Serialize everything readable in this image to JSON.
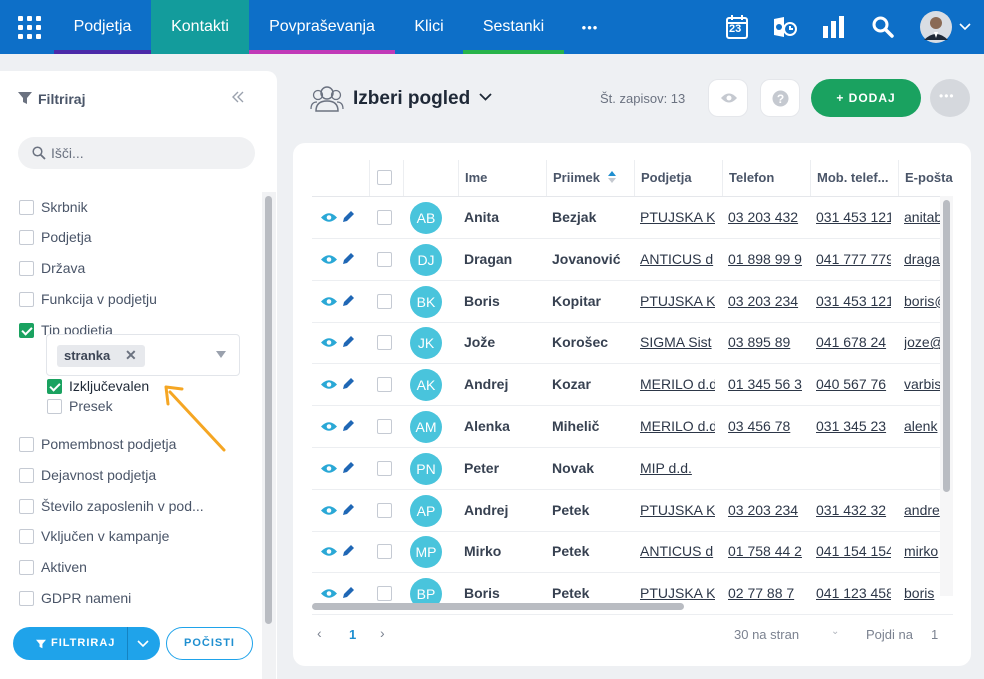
{
  "nav": {
    "items": [
      {
        "label": "Podjetja"
      },
      {
        "label": "Kontakti"
      },
      {
        "label": "Povpraševanja"
      },
      {
        "label": "Klici"
      },
      {
        "label": "Sestanki"
      }
    ],
    "more": "•••",
    "calendar_day": "23",
    "colors": {
      "bar": "#0d6fc8",
      "active": "#139c9c"
    }
  },
  "sidebar": {
    "title": "Filtriraj",
    "search_placeholder": "Išči...",
    "filters": [
      {
        "label": "Skrbnik",
        "checked": false
      },
      {
        "label": "Podjetja",
        "checked": false
      },
      {
        "label": "Država",
        "checked": false
      },
      {
        "label": "Funkcija v podjetju",
        "checked": false
      },
      {
        "label": "Tip podjetja",
        "checked": true
      },
      {
        "label": "Pomembnost podjetja",
        "checked": false
      },
      {
        "label": "Dejavnost podjetja",
        "checked": false
      },
      {
        "label": "Število zaposlenih v pod...",
        "checked": false
      },
      {
        "label": "Vključen v kampanje",
        "checked": false
      },
      {
        "label": "Aktiven",
        "checked": false
      },
      {
        "label": "GDPR nameni",
        "checked": false
      }
    ],
    "tag": "stranka",
    "sub_options": [
      {
        "label": "Izključevalen",
        "checked": true
      },
      {
        "label": "Presek",
        "checked": false
      }
    ],
    "filter_button": "FILTRIRAJ",
    "reset_button": "POČISTI"
  },
  "header": {
    "view_title": "Izberi pogled",
    "record_count": "Št. zapisov: 13",
    "add_button": "+ DODAJ"
  },
  "table": {
    "columns": [
      "Ime",
      "Priimek",
      "Podjetja",
      "Telefon",
      "Mob. telef...",
      "E-pošta"
    ],
    "rows": [
      {
        "initials": "AB",
        "first": "Anita",
        "last": "Bezjak",
        "company": "PTUJSKA K",
        "phone": "03 203 432",
        "mobile": "031 453 121",
        "email": "anitab"
      },
      {
        "initials": "DJ",
        "first": "Dragan",
        "last": "Jovanović",
        "company": "ANTICUS d",
        "phone": "01 898 99 9",
        "mobile": "041 777 779",
        "email": "dragan"
      },
      {
        "initials": "BK",
        "first": "Boris",
        "last": "Kopitar",
        "company": "PTUJSKA K",
        "phone": "03 203 234",
        "mobile": "031 453 121",
        "email": "boris@"
      },
      {
        "initials": "JK",
        "first": "Jože",
        "last": "Korošec",
        "company": "SIGMA Sist",
        "phone": "03 895 89",
        "mobile": "041 678 24",
        "email": "joze@"
      },
      {
        "initials": "AK",
        "first": "Andrej",
        "last": "Kozar",
        "company": "MERILO d.d",
        "phone": "01 345 56 3",
        "mobile": "040 567 76",
        "email": "varbis"
      },
      {
        "initials": "AM",
        "first": "Alenka",
        "last": "Mihelič",
        "company": "MERILO d.d",
        "phone": "03 456 78",
        "mobile": "031 345 23",
        "email": "alenk"
      },
      {
        "initials": "PN",
        "first": "Peter",
        "last": "Novak",
        "company": "MIP d.d.",
        "phone": "",
        "mobile": "",
        "email": ""
      },
      {
        "initials": "AP",
        "first": "Andrej",
        "last": "Petek",
        "company": "PTUJSKA K",
        "phone": "03 203 234",
        "mobile": "031 432 32",
        "email": "andre"
      },
      {
        "initials": "MP",
        "first": "Mirko",
        "last": "Petek",
        "company": "ANTICUS d",
        "phone": "01 758 44 2",
        "mobile": "041 154 154",
        "email": "mirko"
      },
      {
        "initials": "BP",
        "first": "Boris",
        "last": "Petek",
        "company": "PTUJSKA K",
        "phone": "02 77 88 7",
        "mobile": "041 123 458",
        "email": "boris"
      }
    ]
  },
  "pagination": {
    "current_page": "1",
    "per_page": "30 na stran",
    "goto_label": "Pojdi na",
    "goto_value": "1"
  },
  "accent": {
    "green": "#1aa260",
    "blue": "#1fa3ea",
    "avatar": "#49c4dc",
    "annotation_arrow": "#f5a623"
  }
}
